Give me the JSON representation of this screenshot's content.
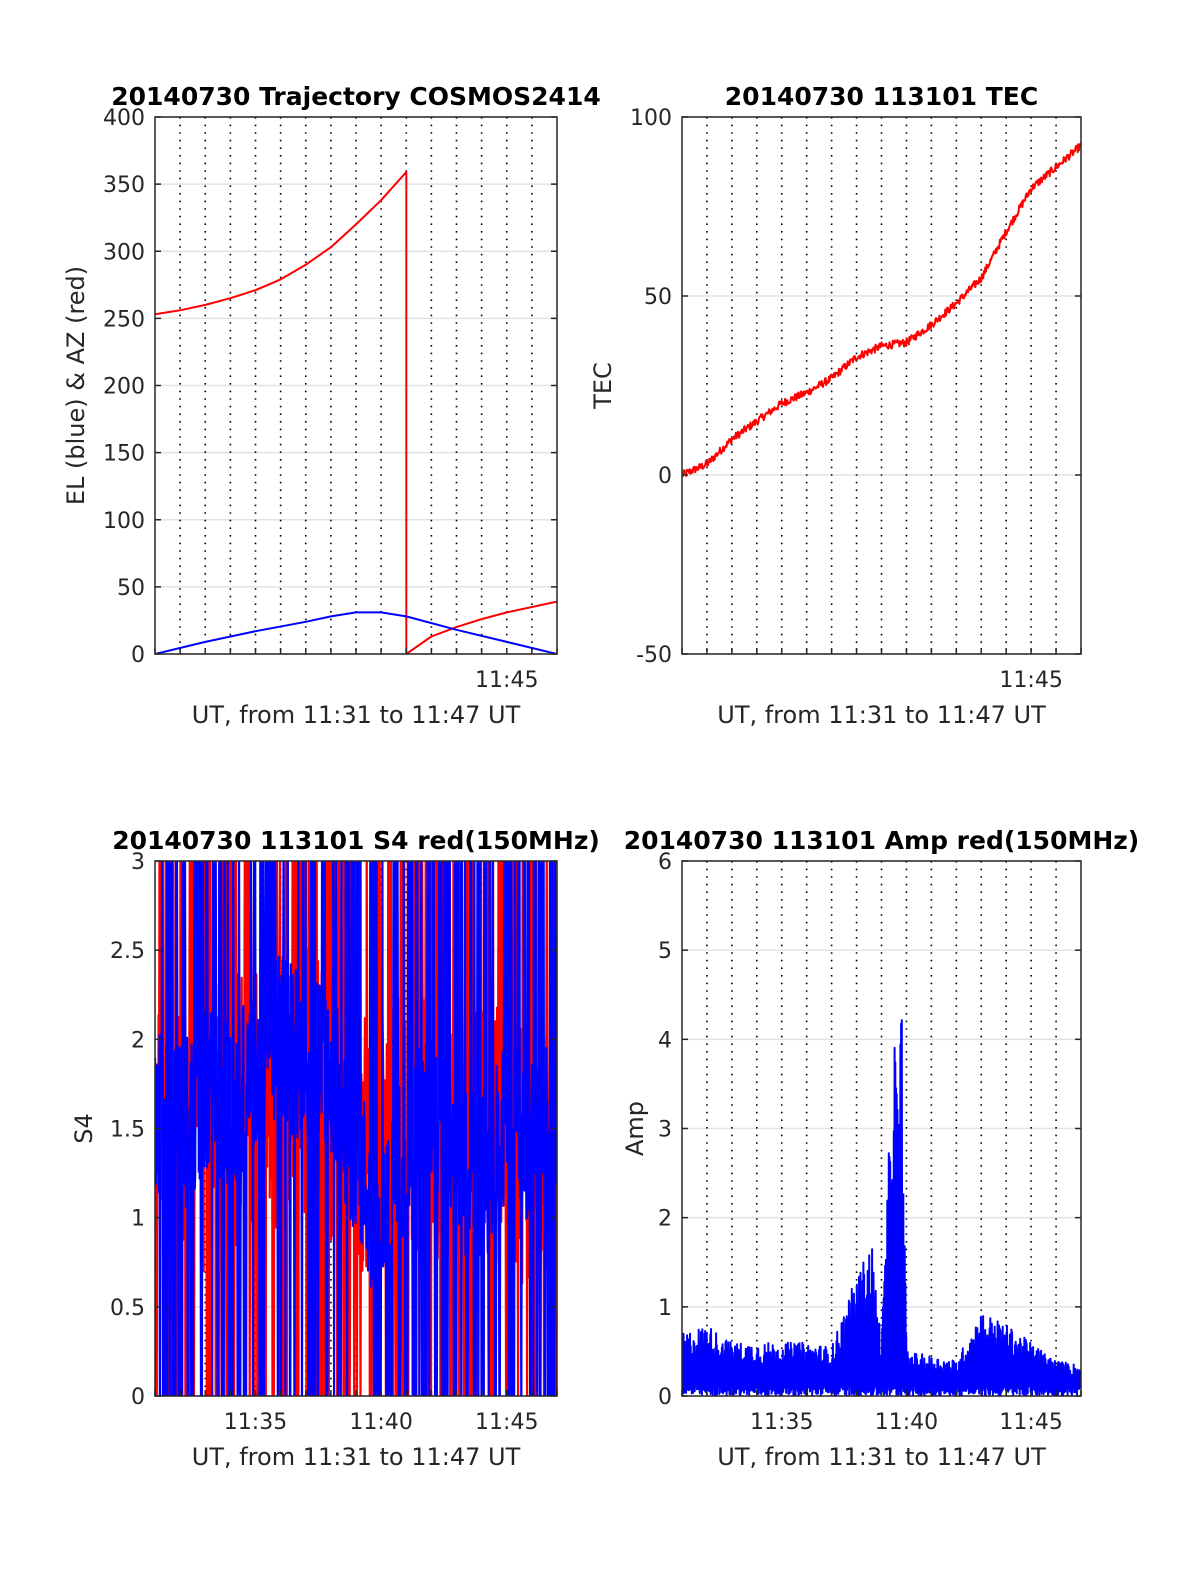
{
  "chart_data": [
    {
      "type": "line",
      "title": "20140730 Trajectory COSMOS2414",
      "xlabel": "UT, from 11:31 to 11:47 UT",
      "ylabel": "EL (blue) & AZ (red)",
      "xlim": [
        "11:31",
        "11:47"
      ],
      "ylim": [
        0,
        400
      ],
      "yticks": [
        0,
        50,
        100,
        150,
        200,
        250,
        300,
        350,
        400
      ],
      "xtick_labels": [
        {
          "at": "11:45",
          "label": "11:45"
        }
      ],
      "grid": "horizontal solid, vertical dotted every 1 min",
      "series": [
        {
          "color": "#ff0000",
          "x": [
            "11:31",
            "11:32",
            "11:33",
            "11:34",
            "11:35",
            "11:36",
            "11:37",
            "11:38",
            "11:39",
            "11:40",
            "11:41",
            "11:41",
            "11:42",
            "11:43",
            "11:44",
            "11:45",
            "11:46",
            "11:47"
          ],
          "y": [
            253,
            256,
            260,
            265,
            271,
            279,
            290,
            303,
            320,
            338,
            359,
            0,
            13,
            20,
            26,
            31,
            35,
            39
          ]
        },
        {
          "color": "#0000ff",
          "x": [
            "11:31",
            "11:33",
            "11:35",
            "11:37",
            "11:38",
            "11:39",
            "11:40",
            "11:41",
            "11:43",
            "11:45",
            "11:47"
          ],
          "y": [
            0,
            9,
            17,
            24,
            28,
            31,
            31,
            28,
            18,
            9,
            0
          ]
        }
      ]
    },
    {
      "type": "line",
      "title": "20140730 113101 TEC",
      "xlabel": "UT, from 11:31 to 11:47 UT",
      "ylabel": "TEC",
      "xlim": [
        "11:31",
        "11:47"
      ],
      "ylim": [
        -50,
        100
      ],
      "yticks": [
        -50,
        0,
        50,
        100
      ],
      "xtick_labels": [
        {
          "at": "11:45",
          "label": "11:45"
        }
      ],
      "grid": "horizontal solid, vertical dotted every 1 min",
      "series": [
        {
          "color": "#ff0000",
          "x": [
            "11:31",
            "11:32",
            "11:33",
            "11:34",
            "11:35",
            "11:36",
            "11:37",
            "11:38",
            "11:39",
            "11:40",
            "11:41",
            "11:42",
            "11:43",
            "11:44",
            "11:45",
            "11:46",
            "11:47"
          ],
          "y": [
            0,
            3,
            10,
            15,
            20,
            23,
            27,
            33,
            36,
            37,
            42,
            48,
            55,
            68,
            80,
            86,
            92
          ]
        }
      ]
    },
    {
      "type": "line",
      "title": "20140730 113101 S4 red(150MHz)",
      "xlabel": "UT, from 11:31 to 11:47 UT",
      "ylabel": "S4",
      "xlim": [
        "11:31",
        "11:47"
      ],
      "ylim": [
        0,
        3
      ],
      "yticks": [
        0,
        0.5,
        1,
        1.5,
        2,
        2.5,
        3
      ],
      "xtick_labels": [
        {
          "at": "11:35",
          "label": "11:35"
        },
        {
          "at": "11:40",
          "label": "11:40"
        },
        {
          "at": "11:45",
          "label": "11:45"
        }
      ],
      "grid": "horizontal solid, vertical dotted every 1 min",
      "series": [
        {
          "color": "#ff0000",
          "note": "dense noisy trace spanning 0 to 3",
          "x": [
            "11:31",
            "11:33",
            "11:35",
            "11:37",
            "11:39",
            "11:41",
            "11:43",
            "11:45",
            "11:47"
          ],
          "y": [
            1.5,
            1.5,
            1.7,
            1.8,
            1.5,
            1.5,
            1.5,
            1.4,
            1.5
          ]
        },
        {
          "color": "#0000ff",
          "note": "dense noisy trace spanning 0 to 3",
          "x": [
            "11:31",
            "11:32",
            "11:33",
            "11:34",
            "11:35",
            "11:36",
            "11:37",
            "11:38",
            "11:39",
            "11:40",
            "11:41",
            "11:42",
            "11:43",
            "11:44",
            "11:45",
            "11:46",
            "11:47"
          ],
          "y": [
            1.6,
            1.5,
            1.7,
            1.6,
            1.8,
            2.0,
            1.9,
            1.8,
            1.4,
            0.8,
            1.5,
            1.6,
            1.3,
            1.2,
            1.5,
            1.4,
            1.5
          ]
        }
      ]
    },
    {
      "type": "line",
      "title": "20140730 113101 Amp red(150MHz)",
      "xlabel": "UT, from 11:31 to 11:47 UT",
      "ylabel": "Amp",
      "xlim": [
        "11:31",
        "11:47"
      ],
      "ylim": [
        0,
        6
      ],
      "yticks": [
        0,
        1,
        2,
        3,
        4,
        5,
        6
      ],
      "xtick_labels": [
        {
          "at": "11:35",
          "label": "11:35"
        },
        {
          "at": "11:40",
          "label": "11:40"
        },
        {
          "at": "11:45",
          "label": "11:45"
        }
      ],
      "grid": "horizontal solid, vertical dotted every 1 min",
      "series": [
        {
          "color": "#0000ff",
          "x": [
            "11:31",
            "11:32",
            "11:33",
            "11:34",
            "11:35",
            "11:36",
            "11:37",
            "11:37.8",
            "11:38.6",
            "11:39",
            "11:39.5",
            "11:39.7",
            "11:39.8",
            "11:40",
            "11:41",
            "11:42",
            "11:43",
            "11:44",
            "11:45",
            "11:46",
            "11:47"
          ],
          "y": [
            0.7,
            0.8,
            0.6,
            0.6,
            0.6,
            0.6,
            0.55,
            1.2,
            1.75,
            0.6,
            4.25,
            3.2,
            4.68,
            0.5,
            0.45,
            0.4,
            0.95,
            0.8,
            0.6,
            0.4,
            0.35
          ]
        }
      ]
    }
  ]
}
